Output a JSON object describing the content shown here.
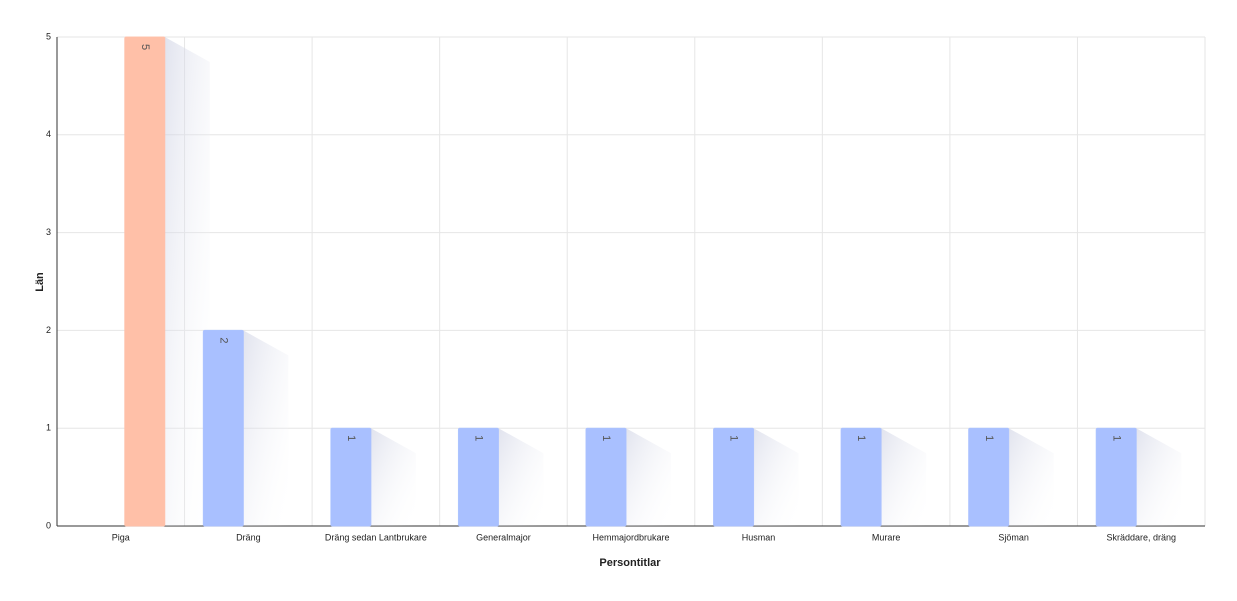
{
  "chart_data": {
    "type": "bar",
    "x_label": "Persontitlar",
    "y_label": "Län",
    "categories": [
      "Piga",
      "Dräng",
      "Dräng sedan Lantbrukare",
      "Generalmajor",
      "Hemmajordbrukare",
      "Husman",
      "Murare",
      "Sjöman",
      "Skräddare, dräng"
    ],
    "values": [
      5,
      2,
      1,
      1,
      1,
      1,
      1,
      1,
      1
    ],
    "colors": [
      "#ffc0a8",
      "#a9c0ff",
      "#a9c0ff",
      "#a9c0ff",
      "#a9c0ff",
      "#a9c0ff",
      "#a9c0ff",
      "#a9c0ff",
      "#a9c0ff"
    ],
    "ylim": [
      0,
      5
    ],
    "yticks": [
      0,
      1,
      2,
      3,
      4,
      5
    ],
    "grid": true
  }
}
